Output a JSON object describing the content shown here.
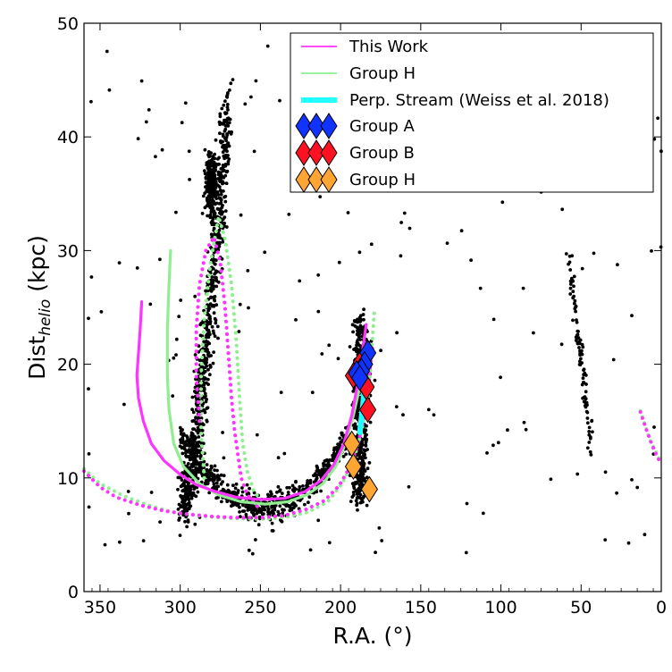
{
  "chart_data": {
    "type": "scatter",
    "xlabel": "R.A. (°)",
    "ylabel_main": "Dist",
    "ylabel_sub": "helio",
    "ylabel_unit": " (kpc)",
    "xlim": [
      360,
      0
    ],
    "ylim": [
      0,
      50
    ],
    "xticks": [
      350,
      300,
      250,
      200,
      150,
      100,
      50,
      0
    ],
    "yticks": [
      0,
      10,
      20,
      30,
      40,
      50
    ],
    "grid": false,
    "legend_position": "top-right",
    "legend": [
      {
        "label": "This Work",
        "style": "line",
        "color": "#ff33ff"
      },
      {
        "label": "Group H",
        "style": "line",
        "color": "#90ee90"
      },
      {
        "label": "Perp. Stream (Weiss et al. 2018)",
        "style": "thick-line",
        "color": "#22ffff"
      },
      {
        "label": "Group A",
        "style": "diamond",
        "color": "#1133ff"
      },
      {
        "label": "Group B",
        "style": "diamond",
        "color": "#ff1122"
      },
      {
        "label": "Group H",
        "style": "diamond",
        "color": "#ffa533"
      }
    ],
    "orbit_this_work_solid": [
      [
        324,
        25.5
      ],
      [
        325,
        23
      ],
      [
        326,
        21
      ],
      [
        327,
        19
      ],
      [
        326,
        17
      ],
      [
        323,
        15
      ],
      [
        318,
        13
      ],
      [
        310,
        11.5
      ],
      [
        300,
        10.3
      ],
      [
        290,
        9.4
      ],
      [
        278,
        8.8
      ],
      [
        265,
        8.3
      ],
      [
        250,
        8.1
      ],
      [
        235,
        8.2
      ],
      [
        222,
        8.8
      ],
      [
        212,
        9.8
      ],
      [
        204,
        11.2
      ],
      [
        198,
        13
      ],
      [
        193,
        15.5
      ],
      [
        189,
        18.5
      ],
      [
        186,
        21.5
      ],
      [
        184,
        23.5
      ]
    ],
    "orbit_this_work_dotted_a": [
      [
        360,
        10.6
      ],
      [
        350,
        9.2
      ],
      [
        340,
        8.3
      ],
      [
        325,
        7.6
      ],
      [
        310,
        7.1
      ],
      [
        295,
        6.8
      ],
      [
        280,
        6.6
      ],
      [
        265,
        6.5
      ],
      [
        250,
        6.5
      ],
      [
        235,
        6.7
      ],
      [
        222,
        7.2
      ],
      [
        210,
        8
      ],
      [
        201,
        9.3
      ],
      [
        194,
        11
      ],
      [
        189,
        13
      ],
      [
        185,
        15.5
      ],
      [
        183,
        17.5
      ],
      [
        182,
        19
      ],
      [
        181,
        20.5
      ],
      [
        180,
        21.5
      ]
    ],
    "orbit_this_work_dotted_b": [
      [
        288,
        15
      ],
      [
        290,
        19
      ],
      [
        290,
        23
      ],
      [
        288,
        27
      ],
      [
        284,
        30
      ],
      [
        279,
        31.2
      ],
      [
        275,
        29
      ],
      [
        272,
        25
      ],
      [
        270,
        21
      ],
      [
        268,
        17
      ],
      [
        266,
        14
      ],
      [
        264,
        12
      ],
      [
        262,
        10
      ],
      [
        258,
        8.5
      ],
      [
        252,
        7.5
      ]
    ],
    "orbit_this_work_dotted_c": [
      [
        13,
        15.8
      ],
      [
        10,
        14.5
      ],
      [
        6,
        13
      ],
      [
        3,
        12
      ],
      [
        0,
        11.2
      ]
    ],
    "orbit_group_h_solid": [
      [
        306,
        30
      ],
      [
        307,
        27
      ],
      [
        308,
        23
      ],
      [
        308,
        19
      ],
      [
        307,
        16
      ],
      [
        304,
        13
      ],
      [
        298,
        11
      ],
      [
        288,
        9.5
      ],
      [
        276,
        8.5
      ],
      [
        262,
        7.9
      ],
      [
        247,
        7.7
      ],
      [
        233,
        7.9
      ],
      [
        221,
        8.5
      ],
      [
        211,
        9.5
      ],
      [
        203,
        11
      ],
      [
        197,
        13
      ],
      [
        192,
        15.5
      ],
      [
        188,
        18
      ],
      [
        185,
        20
      ],
      [
        183,
        21.5
      ]
    ],
    "orbit_group_h_dotted_a": [
      [
        360,
        10.8
      ],
      [
        350,
        9.5
      ],
      [
        335,
        8.4
      ],
      [
        320,
        7.6
      ],
      [
        305,
        7
      ],
      [
        290,
        6.7
      ],
      [
        275,
        6.5
      ],
      [
        260,
        6.4
      ],
      [
        245,
        6.4
      ],
      [
        232,
        6.6
      ],
      [
        220,
        7
      ],
      [
        208,
        7.9
      ],
      [
        199,
        9.5
      ],
      [
        192,
        11.5
      ],
      [
        187,
        14
      ],
      [
        183,
        17
      ],
      [
        181,
        20
      ],
      [
        180,
        22.5
      ],
      [
        179,
        24.5
      ]
    ],
    "orbit_group_h_dotted_b": [
      [
        285,
        10
      ],
      [
        287,
        14
      ],
      [
        287,
        19
      ],
      [
        285,
        24
      ],
      [
        281,
        29
      ],
      [
        276,
        33
      ],
      [
        272,
        31
      ],
      [
        268,
        27
      ],
      [
        265,
        22
      ],
      [
        263,
        17
      ],
      [
        261,
        13
      ],
      [
        258,
        10.5
      ],
      [
        254,
        8.8
      ],
      [
        248,
        7.8
      ]
    ],
    "orbit_group_h_dotted_c": [
      [
        13,
        15.9
      ],
      [
        10,
        14.6
      ],
      [
        7,
        13.3
      ],
      [
        3,
        12.2
      ],
      [
        0,
        11.3
      ]
    ],
    "perp_stream": [
      [
        188,
        14
      ],
      [
        186,
        16.5
      ],
      [
        185,
        18.5
      ],
      [
        184,
        20
      ]
    ],
    "group_a": [
      [
        183,
        21
      ],
      [
        185,
        20
      ],
      [
        187,
        19.4
      ],
      [
        190,
        19.2
      ],
      [
        188,
        18.8
      ]
    ],
    "group_b": [
      [
        183,
        16
      ],
      [
        184,
        18
      ],
      [
        192,
        19
      ],
      [
        187,
        20.2
      ]
    ],
    "group_h": [
      [
        193,
        13
      ],
      [
        192,
        11
      ],
      [
        182,
        9
      ]
    ]
  }
}
